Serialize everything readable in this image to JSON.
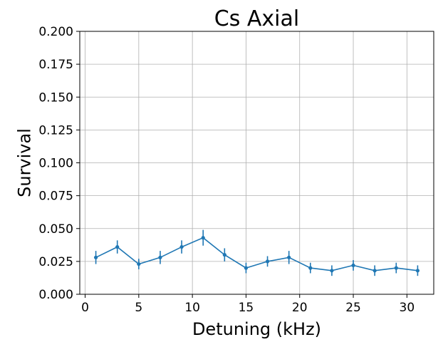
{
  "chart_data": {
    "type": "line",
    "title": "Cs Axial",
    "xlabel": "Detuning (kHz)",
    "ylabel": "Survival",
    "xlim": [
      -0.5,
      32.5
    ],
    "ylim": [
      0.0,
      0.2
    ],
    "xticks": [
      0,
      5,
      10,
      15,
      20,
      25,
      30
    ],
    "xtick_labels": [
      "0",
      "5",
      "10",
      "15",
      "20",
      "25",
      "30"
    ],
    "yticks": [
      0.0,
      0.025,
      0.05,
      0.075,
      0.1,
      0.125,
      0.15,
      0.175,
      0.2
    ],
    "ytick_labels": [
      "0.000",
      "0.025",
      "0.050",
      "0.075",
      "0.100",
      "0.125",
      "0.150",
      "0.175",
      "0.200"
    ],
    "grid": true,
    "color": "#1f77b4",
    "series": [
      {
        "x": [
          1,
          3,
          5,
          7,
          9,
          11,
          13,
          15,
          17,
          19,
          21,
          23,
          25,
          27,
          29,
          31
        ],
        "y": [
          0.028,
          0.036,
          0.023,
          0.028,
          0.036,
          0.043,
          0.03,
          0.02,
          0.025,
          0.028,
          0.02,
          0.018,
          0.022,
          0.018,
          0.02,
          0.018
        ],
        "yerr": [
          0.005,
          0.005,
          0.004,
          0.005,
          0.005,
          0.006,
          0.005,
          0.004,
          0.004,
          0.005,
          0.004,
          0.004,
          0.004,
          0.004,
          0.004,
          0.004
        ]
      }
    ]
  }
}
